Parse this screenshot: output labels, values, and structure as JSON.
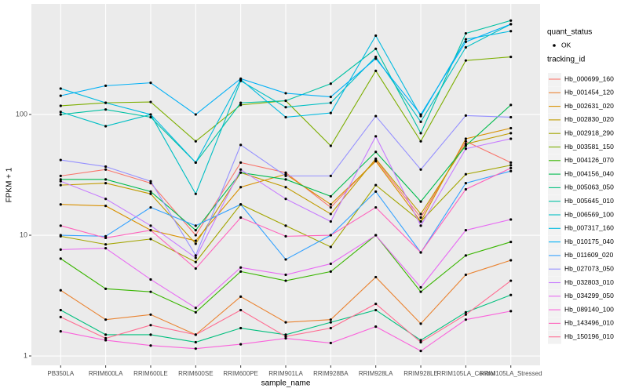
{
  "chart_data": {
    "type": "line",
    "x_label": "sample_name",
    "y_label": "FPKM + 1",
    "log_y": true,
    "grid": true,
    "shape_legend_title": "quant_status",
    "shape_levels": [
      "OK"
    ],
    "color_legend_title": "tracking_id",
    "categories": [
      "PB350LA",
      "RRIM600LA",
      "RRIM600LE",
      "RRIM600SE",
      "RRIM600PE",
      "RRIM901LA",
      "RRIM928BA",
      "RRIM928LA",
      "RRIM928LE",
      "RRIM105LA_Control",
      "RRIM105LA_Stressed"
    ],
    "ylim": [
      0.836,
      824
    ],
    "yticks": [
      1,
      10,
      100
    ],
    "series": [
      {
        "name": "Hb_000699_160",
        "color": "#F8766D",
        "values": [
          31,
          35,
          27,
          10,
          40,
          33,
          17,
          42,
          14,
          60,
          40
        ]
      },
      {
        "name": "Hb_001454_120",
        "color": "#EA8331",
        "values": [
          3.5,
          2.0,
          2.2,
          1.5,
          3.1,
          1.9,
          2.0,
          4.5,
          1.85,
          4.7,
          6.2
        ]
      },
      {
        "name": "Hb_002631_020",
        "color": "#D89000",
        "values": [
          18,
          17.5,
          11,
          9,
          25,
          32,
          18,
          41,
          13,
          63,
          77
        ]
      },
      {
        "name": "Hb_002830_020",
        "color": "#C09B00",
        "values": [
          26,
          27,
          22,
          8.5,
          33,
          25,
          15,
          43,
          15,
          57,
          70
        ]
      },
      {
        "name": "Hb_002918_290",
        "color": "#A3A500",
        "values": [
          9.8,
          8.4,
          9.3,
          6,
          18,
          12,
          8,
          26,
          13,
          32,
          38
        ]
      },
      {
        "name": "Hb_003581_150",
        "color": "#7CAE00",
        "values": [
          118,
          125,
          127,
          60,
          120,
          130,
          55,
          230,
          60,
          280,
          300
        ]
      },
      {
        "name": "Hb_004126_070",
        "color": "#39B600",
        "values": [
          6.4,
          3.6,
          3.4,
          2.3,
          5,
          4.2,
          5,
          10,
          3.4,
          6.8,
          8.8
        ]
      },
      {
        "name": "Hb_004156_040",
        "color": "#00BB4E",
        "values": [
          29,
          29,
          23,
          11,
          33,
          29,
          21,
          49,
          19,
          55,
          120
        ]
      },
      {
        "name": "Hb_005063_050",
        "color": "#00BF7D",
        "values": [
          2.4,
          1.5,
          1.5,
          1.3,
          1.7,
          1.5,
          1.9,
          2.4,
          1.35,
          2.3,
          3.2
        ]
      },
      {
        "name": "Hb_005645_010",
        "color": "#00C1A3",
        "values": [
          100,
          110,
          95,
          40,
          125,
          130,
          180,
          350,
          70,
          470,
          600
        ]
      },
      {
        "name": "Hb_006569_100",
        "color": "#00BFC4",
        "values": [
          105,
          80,
          100,
          22,
          190,
          115,
          125,
          300,
          87,
          360,
          560
        ]
      },
      {
        "name": "Hb_007317_160",
        "color": "#00BAE0",
        "values": [
          164,
          125,
          100,
          40,
          195,
          95,
          103,
          450,
          97,
          420,
          490
        ]
      },
      {
        "name": "Hb_010175_040",
        "color": "#00B0F6",
        "values": [
          143,
          173,
          183,
          100,
          198,
          150,
          140,
          290,
          100,
          400,
          560
        ]
      },
      {
        "name": "Hb_011609_020",
        "color": "#35A2FF",
        "values": [
          10,
          9.8,
          17,
          12,
          18,
          6.3,
          10,
          23,
          7.2,
          27,
          34
        ]
      },
      {
        "name": "Hb_027073_050",
        "color": "#9590FF",
        "values": [
          42,
          37,
          28,
          6.8,
          56,
          31,
          31,
          97,
          35,
          98,
          95
        ]
      },
      {
        "name": "Hb_032803_010",
        "color": "#C77CFF",
        "values": [
          28,
          20,
          12,
          6.5,
          35,
          20,
          13,
          66,
          12,
          52,
          63
        ]
      },
      {
        "name": "Hb_034299_050",
        "color": "#E76BF3",
        "values": [
          7.6,
          7.8,
          4.3,
          2.5,
          5.4,
          4.7,
          5.8,
          10,
          3.7,
          11,
          13.5
        ]
      },
      {
        "name": "Hb_089140_100",
        "color": "#FA62DB",
        "values": [
          1.6,
          1.35,
          1.22,
          1.15,
          1.25,
          1.4,
          1.28,
          1.75,
          1.1,
          2.0,
          2.35
        ]
      },
      {
        "name": "Hb_143496_010",
        "color": "#FF62BC",
        "values": [
          12,
          9.5,
          11,
          5.3,
          14,
          9.8,
          10,
          17,
          7.2,
          24,
          36
        ]
      },
      {
        "name": "Hb_150196_010",
        "color": "#FF6C91",
        "values": [
          2.1,
          1.4,
          1.8,
          1.5,
          2.4,
          1.45,
          1.7,
          2.7,
          1.3,
          2.2,
          4.2
        ]
      }
    ]
  }
}
